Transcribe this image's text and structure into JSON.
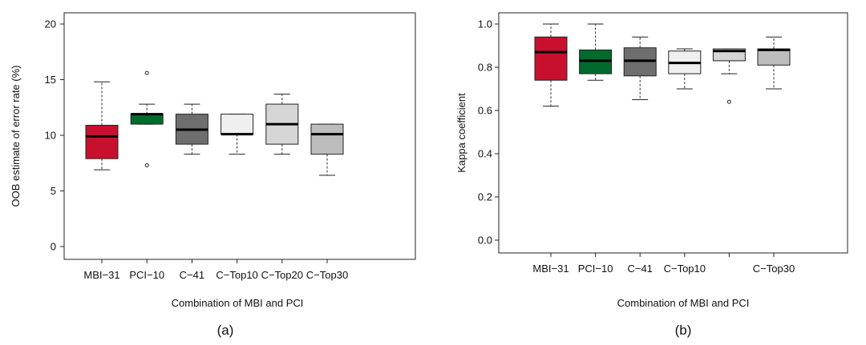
{
  "chart_data": [
    {
      "type": "box",
      "panel_label": "(a)",
      "xlabel": "Combination of MBI and PCI",
      "ylabel": "OOB estimate of error rate (%)",
      "ylim": [
        0,
        20
      ],
      "yticks": [
        0,
        5,
        10,
        15,
        20
      ],
      "grid": false,
      "categories": [
        "MBI−31",
        "PCI−10",
        "C−41",
        "C−Top10",
        "C−Top20",
        "C−Top30"
      ],
      "colors": [
        "#c8102e",
        "#006b2d",
        "#6e6e6e",
        "#efefef",
        "#d6d6d6",
        "#bdbdbd"
      ],
      "boxes": [
        {
          "whisker_low": 6.9,
          "q1": 7.9,
          "median": 9.9,
          "q3": 10.9,
          "whisker_high": 14.8,
          "outliers": []
        },
        {
          "whisker_low": 11.0,
          "q1": 11.0,
          "median": 11.9,
          "q3": 11.9,
          "whisker_high": 12.8,
          "outliers": [
            7.3,
            15.6
          ]
        },
        {
          "whisker_low": 8.3,
          "q1": 9.2,
          "median": 10.5,
          "q3": 11.9,
          "whisker_high": 12.8,
          "outliers": []
        },
        {
          "whisker_low": 8.3,
          "q1": 10.1,
          "median": 10.1,
          "q3": 11.9,
          "whisker_high": 11.9,
          "outliers": []
        },
        {
          "whisker_low": 8.3,
          "q1": 9.2,
          "median": 11.0,
          "q3": 12.8,
          "whisker_high": 13.7,
          "outliers": []
        },
        {
          "whisker_low": 6.4,
          "q1": 8.3,
          "median": 10.1,
          "q3": 11.0,
          "whisker_high": 11.0,
          "outliers": []
        }
      ]
    },
    {
      "type": "box",
      "panel_label": "(b)",
      "xlabel": "Combination of MBI and PCI",
      "ylabel": "Kappa coefficient",
      "ylim": [
        0,
        1
      ],
      "yticks": [
        "0.0",
        "0.2",
        "0.4",
        "0.6",
        "0.8",
        "1.0"
      ],
      "grid": false,
      "categories": [
        "MBI−31",
        "PCI−10",
        "C−41",
        "C−Top10",
        "",
        "C−Top30"
      ],
      "colors": [
        "#c8102e",
        "#006b2d",
        "#6e6e6e",
        "#efefef",
        "#d6d6d6",
        "#bdbdbd"
      ],
      "boxes": [
        {
          "whisker_low": 0.62,
          "q1": 0.74,
          "median": 0.87,
          "q3": 0.94,
          "whisker_high": 1.0,
          "outliers": []
        },
        {
          "whisker_low": 0.74,
          "q1": 0.77,
          "median": 0.83,
          "q3": 0.88,
          "whisker_high": 1.0,
          "outliers": []
        },
        {
          "whisker_low": 0.65,
          "q1": 0.76,
          "median": 0.83,
          "q3": 0.89,
          "whisker_high": 0.94,
          "outliers": []
        },
        {
          "whisker_low": 0.7,
          "q1": 0.77,
          "median": 0.82,
          "q3": 0.875,
          "whisker_high": 0.885,
          "outliers": []
        },
        {
          "whisker_low": 0.77,
          "q1": 0.83,
          "median": 0.875,
          "q3": 0.885,
          "whisker_high": 0.885,
          "outliers": [
            0.64
          ]
        },
        {
          "whisker_low": 0.7,
          "q1": 0.81,
          "median": 0.88,
          "q3": 0.885,
          "whisker_high": 0.94,
          "outliers": []
        }
      ]
    }
  ]
}
